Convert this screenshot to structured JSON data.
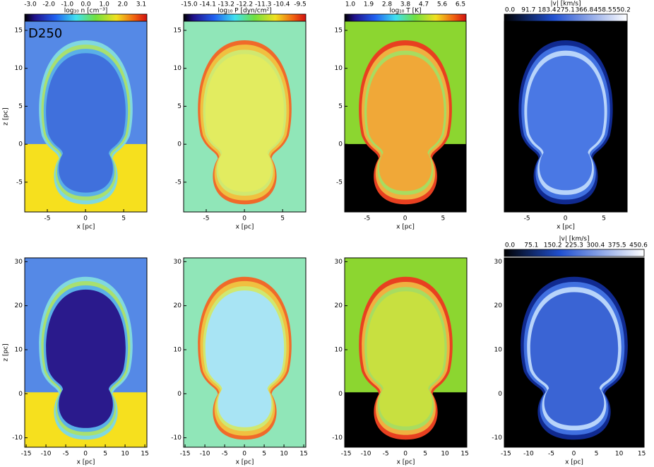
{
  "label": "D250",
  "colorbars": [
    {
      "title": "log₁₀ n [cm⁻³]",
      "ticks": [
        "-3.0",
        "-2.0",
        "-1.0",
        "0.0",
        "1.0",
        "2.0",
        "3.1"
      ]
    },
    {
      "title": "log₁₀ P [dyn/cm²]",
      "ticks": [
        "-15.0",
        "-14.1",
        "-13.2",
        "-12.2",
        "-11.3",
        "-10.4",
        "-9.5"
      ]
    },
    {
      "title": "log₁₀ T [K]",
      "ticks": [
        "1.0",
        "1.9",
        "2.8",
        "3.8",
        "4.7",
        "5.6",
        "6.5"
      ]
    },
    {
      "title": "|v| [km/s]",
      "ticks": [
        "0.0",
        "91.7",
        "183.4",
        "275.1",
        "366.8",
        "458.5",
        "550.2"
      ]
    },
    {
      "title": "|v| [km/s]",
      "ticks": [
        "0.0",
        "75.1",
        "150.2",
        "225.3",
        "300.4",
        "375.5",
        "450.6"
      ]
    }
  ],
  "rows": [
    {
      "xlabel": "x [pc]",
      "ylabel": "z [pc]",
      "xticks": [
        "-5",
        "0",
        "5"
      ],
      "yticks": [
        "-5",
        "0",
        "5",
        "10",
        "15"
      ]
    },
    {
      "xlabel": "x [pc]",
      "ylabel": "z [pc]",
      "xticks": [
        "-15",
        "-10",
        "-5",
        "0",
        "5",
        "10",
        "15"
      ],
      "yticks": [
        "-10",
        "0",
        "10",
        "20",
        "30"
      ]
    }
  ]
}
